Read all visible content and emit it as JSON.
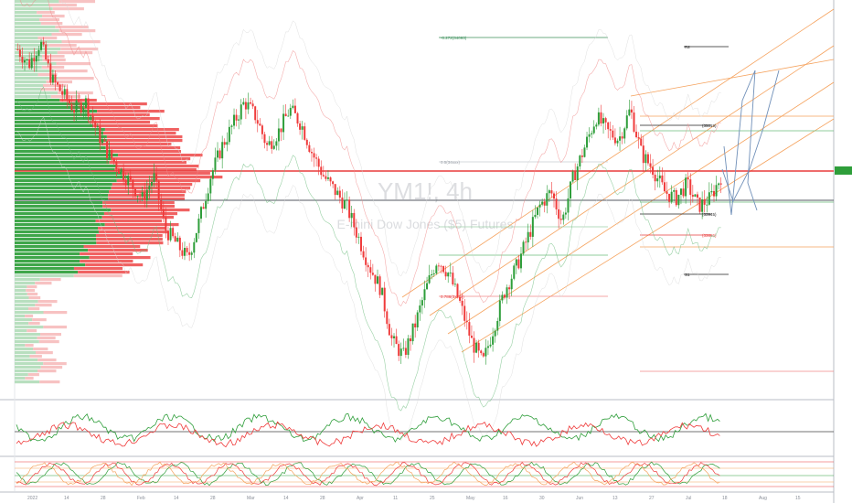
{
  "chart": {
    "watermark_symbol": "YM1!, 4h",
    "watermark_name": "E-mini Dow Jones ($5) Futures",
    "price_tag": "",
    "colors": {
      "up": "#2e9e3a",
      "down": "#ef3b3b",
      "orange": "#f5a25d",
      "blue": "#6f8fb8",
      "support": "#e83c3c",
      "black": "#222222"
    },
    "annotations": {
      "fib_272": "-0.272(34093)",
      "fib_top": "0.5(34xxx)",
      "fib_786": "0.786(3xxxx)",
      "r2_label": "R2",
      "s1_label": "S1",
      "level_upper": "(35019)",
      "level_lower": "(33945)",
      "level_red": "(33686)"
    },
    "x_ticks": [
      "2022",
      "14",
      "28",
      "Feb",
      "14",
      "28",
      "Mar",
      "14",
      "28",
      "Apr",
      "11",
      "25",
      "May",
      "16",
      "30",
      "Jun",
      "13",
      "27",
      "Jul",
      "18",
      "Aug",
      "15"
    ],
    "y_ticks": [
      "",
      "",
      "",
      "",
      "",
      "",
      "",
      "",
      "",
      "",
      "",
      "",
      "",
      "",
      "",
      "",
      "",
      "",
      "",
      "",
      "",
      "",
      ""
    ]
  },
  "chart_data": {
    "type": "candlestick",
    "title": "YM1!, 4h",
    "subtitle": "E-mini Dow Jones ($5) Futures",
    "series": [
      {
        "name": "price",
        "values": [
          35600,
          35400,
          35700,
          35200,
          35000,
          34800,
          34900,
          34500,
          34200,
          34000,
          33800,
          33600,
          33900,
          33200,
          33000,
          32800,
          33300,
          33900,
          34300,
          34600,
          34900,
          34700,
          34300,
          34500,
          34800,
          34600,
          34200,
          33900,
          33700,
          33500,
          33100,
          32700,
          32400,
          31700,
          31500,
          31900,
          32400,
          32800,
          32600,
          32200,
          31700,
          31400,
          31900,
          32400,
          32700,
          33100,
          33500,
          33700,
          33300,
          33900,
          34300,
          34700,
          34500,
          34400,
          34800,
          34200,
          34000,
          33700,
          33600,
          33800,
          33500,
          33600,
          33900
        ]
      }
    ]
  }
}
